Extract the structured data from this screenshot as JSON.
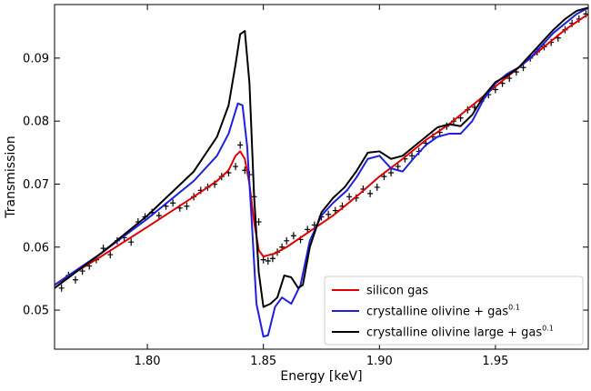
{
  "chart_data": {
    "type": "line",
    "xlabel": "Energy  [keV]",
    "ylabel": "Transmission",
    "xlim": [
      1.76,
      1.99
    ],
    "ylim": [
      0.0438,
      0.0985
    ],
    "xticks": [
      1.8,
      1.85,
      1.9,
      1.95
    ],
    "xtick_labels": [
      "1.80",
      "1.85",
      "1.90",
      "1.95"
    ],
    "yticks": [
      0.05,
      0.06,
      0.07,
      0.08,
      0.09
    ],
    "ytick_labels": [
      "0.05",
      "0.06",
      "0.07",
      "0.08",
      "0.09"
    ],
    "grid": false,
    "legend_position": "bottom-right",
    "series": [
      {
        "name": "silicon gas",
        "color": "#e00000",
        "points": [
          [
            1.76,
            0.054
          ],
          [
            1.78,
            0.0585
          ],
          [
            1.8,
            0.0632
          ],
          [
            1.82,
            0.068
          ],
          [
            1.83,
            0.0705
          ],
          [
            1.835,
            0.0722
          ],
          [
            1.838,
            0.0745
          ],
          [
            1.84,
            0.0752
          ],
          [
            1.842,
            0.074
          ],
          [
            1.844,
            0.07
          ],
          [
            1.846,
            0.064
          ],
          [
            1.848,
            0.0595
          ],
          [
            1.85,
            0.0585
          ],
          [
            1.855,
            0.059
          ],
          [
            1.86,
            0.06
          ],
          [
            1.87,
            0.0625
          ],
          [
            1.88,
            0.065
          ],
          [
            1.89,
            0.068
          ],
          [
            1.9,
            0.0712
          ],
          [
            1.91,
            0.074
          ],
          [
            1.92,
            0.077
          ],
          [
            1.93,
            0.0795
          ],
          [
            1.94,
            0.0825
          ],
          [
            1.95,
            0.0855
          ],
          [
            1.96,
            0.0885
          ],
          [
            1.97,
            0.0915
          ],
          [
            1.98,
            0.0945
          ],
          [
            1.99,
            0.097
          ]
        ]
      },
      {
        "name": "crystalline olivine + gas",
        "name_sup": "0.1",
        "color": "#1f1fe0",
        "points": [
          [
            1.76,
            0.054
          ],
          [
            1.78,
            0.059
          ],
          [
            1.8,
            0.0645
          ],
          [
            1.82,
            0.0705
          ],
          [
            1.83,
            0.0745
          ],
          [
            1.835,
            0.078
          ],
          [
            1.839,
            0.0828
          ],
          [
            1.841,
            0.0825
          ],
          [
            1.843,
            0.076
          ],
          [
            1.845,
            0.064
          ],
          [
            1.847,
            0.051
          ],
          [
            1.85,
            0.0458
          ],
          [
            1.852,
            0.046
          ],
          [
            1.855,
            0.0505
          ],
          [
            1.858,
            0.052
          ],
          [
            1.862,
            0.051
          ],
          [
            1.866,
            0.054
          ],
          [
            1.87,
            0.061
          ],
          [
            1.875,
            0.065
          ],
          [
            1.88,
            0.067
          ],
          [
            1.886,
            0.069
          ],
          [
            1.89,
            0.071
          ],
          [
            1.895,
            0.074
          ],
          [
            1.9,
            0.0745
          ],
          [
            1.905,
            0.0725
          ],
          [
            1.91,
            0.072
          ],
          [
            1.915,
            0.0742
          ],
          [
            1.92,
            0.0762
          ],
          [
            1.925,
            0.0775
          ],
          [
            1.93,
            0.078
          ],
          [
            1.935,
            0.078
          ],
          [
            1.94,
            0.08
          ],
          [
            1.945,
            0.0835
          ],
          [
            1.95,
            0.086
          ],
          [
            1.955,
            0.0875
          ],
          [
            1.96,
            0.0885
          ],
          [
            1.965,
            0.09
          ],
          [
            1.97,
            0.092
          ],
          [
            1.975,
            0.094
          ],
          [
            1.98,
            0.0955
          ],
          [
            1.985,
            0.097
          ],
          [
            1.99,
            0.098
          ]
        ]
      },
      {
        "name": "crystalline olivine large + gas",
        "name_sup": "0.1",
        "color": "#000000",
        "points": [
          [
            1.76,
            0.0535
          ],
          [
            1.78,
            0.059
          ],
          [
            1.8,
            0.065
          ],
          [
            1.82,
            0.072
          ],
          [
            1.83,
            0.0775
          ],
          [
            1.835,
            0.0825
          ],
          [
            1.838,
            0.089
          ],
          [
            1.84,
            0.0938
          ],
          [
            1.842,
            0.0943
          ],
          [
            1.844,
            0.086
          ],
          [
            1.846,
            0.068
          ],
          [
            1.848,
            0.056
          ],
          [
            1.85,
            0.0505
          ],
          [
            1.853,
            0.051
          ],
          [
            1.856,
            0.052
          ],
          [
            1.859,
            0.0555
          ],
          [
            1.862,
            0.0552
          ],
          [
            1.865,
            0.0535
          ],
          [
            1.867,
            0.054
          ],
          [
            1.87,
            0.06
          ],
          [
            1.875,
            0.0655
          ],
          [
            1.88,
            0.0678
          ],
          [
            1.885,
            0.0695
          ],
          [
            1.89,
            0.072
          ],
          [
            1.895,
            0.075
          ],
          [
            1.9,
            0.0752
          ],
          [
            1.905,
            0.074
          ],
          [
            1.91,
            0.0745
          ],
          [
            1.915,
            0.076
          ],
          [
            1.92,
            0.0775
          ],
          [
            1.925,
            0.079
          ],
          [
            1.93,
            0.0795
          ],
          [
            1.935,
            0.0792
          ],
          [
            1.94,
            0.081
          ],
          [
            1.945,
            0.084
          ],
          [
            1.95,
            0.0862
          ],
          [
            1.955,
            0.0872
          ],
          [
            1.96,
            0.0885
          ],
          [
            1.965,
            0.0905
          ],
          [
            1.97,
            0.0925
          ],
          [
            1.975,
            0.0945
          ],
          [
            1.98,
            0.0962
          ],
          [
            1.985,
            0.0975
          ],
          [
            1.99,
            0.098
          ]
        ]
      }
    ],
    "observed": {
      "color": "#000000",
      "points": [
        [
          1.763,
          0.0535
        ],
        [
          1.766,
          0.0555
        ],
        [
          1.769,
          0.0548
        ],
        [
          1.772,
          0.0562
        ],
        [
          1.775,
          0.057
        ],
        [
          1.778,
          0.058
        ],
        [
          1.781,
          0.0598
        ],
        [
          1.784,
          0.0588
        ],
        [
          1.787,
          0.061
        ],
        [
          1.79,
          0.0615
        ],
        [
          1.793,
          0.0608
        ],
        [
          1.796,
          0.064
        ],
        [
          1.799,
          0.0648
        ],
        [
          1.802,
          0.0655
        ],
        [
          1.805,
          0.065
        ],
        [
          1.808,
          0.0665
        ],
        [
          1.811,
          0.067
        ],
        [
          1.814,
          0.0662
        ],
        [
          1.817,
          0.0665
        ],
        [
          1.82,
          0.068
        ],
        [
          1.823,
          0.069
        ],
        [
          1.826,
          0.0695
        ],
        [
          1.829,
          0.07
        ],
        [
          1.832,
          0.0712
        ],
        [
          1.835,
          0.0718
        ],
        [
          1.838,
          0.0728
        ],
        [
          1.84,
          0.0762
        ],
        [
          1.842,
          0.0722
        ],
        [
          1.844,
          0.0715
        ],
        [
          1.846,
          0.068
        ],
        [
          1.848,
          0.064
        ],
        [
          1.85,
          0.058
        ],
        [
          1.852,
          0.0578
        ],
        [
          1.854,
          0.0582
        ],
        [
          1.856,
          0.0592
        ],
        [
          1.858,
          0.06
        ],
        [
          1.86,
          0.061
        ],
        [
          1.863,
          0.0618
        ],
        [
          1.866,
          0.0612
        ],
        [
          1.869,
          0.0628
        ],
        [
          1.872,
          0.0635
        ],
        [
          1.875,
          0.0648
        ],
        [
          1.878,
          0.0652
        ],
        [
          1.881,
          0.0658
        ],
        [
          1.884,
          0.0665
        ],
        [
          1.887,
          0.068
        ],
        [
          1.89,
          0.0678
        ],
        [
          1.893,
          0.0692
        ],
        [
          1.896,
          0.0685
        ],
        [
          1.899,
          0.0695
        ],
        [
          1.902,
          0.0712
        ],
        [
          1.905,
          0.0718
        ],
        [
          1.908,
          0.0728
        ],
        [
          1.911,
          0.074
        ],
        [
          1.914,
          0.0745
        ],
        [
          1.917,
          0.0752
        ],
        [
          1.92,
          0.0765
        ],
        [
          1.923,
          0.0775
        ],
        [
          1.926,
          0.0782
        ],
        [
          1.929,
          0.0792
        ],
        [
          1.932,
          0.08
        ],
        [
          1.935,
          0.0805
        ],
        [
          1.938,
          0.0818
        ],
        [
          1.941,
          0.0822
        ],
        [
          1.944,
          0.0832
        ],
        [
          1.947,
          0.0842
        ],
        [
          1.95,
          0.085
        ],
        [
          1.953,
          0.086
        ],
        [
          1.956,
          0.0868
        ],
        [
          1.959,
          0.0878
        ],
        [
          1.962,
          0.0885
        ],
        [
          1.965,
          0.09
        ],
        [
          1.968,
          0.091
        ],
        [
          1.971,
          0.0918
        ],
        [
          1.974,
          0.0925
        ],
        [
          1.977,
          0.0932
        ],
        [
          1.98,
          0.0945
        ],
        [
          1.983,
          0.0955
        ],
        [
          1.986,
          0.0962
        ],
        [
          1.989,
          0.097
        ]
      ]
    }
  }
}
